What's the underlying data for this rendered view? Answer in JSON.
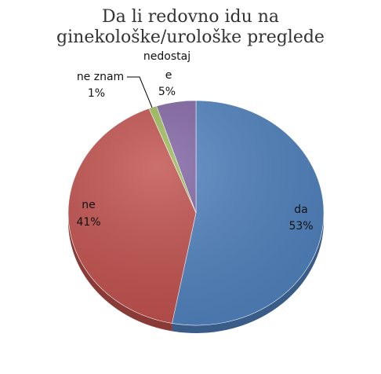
{
  "chart_data": {
    "type": "pie",
    "title_lines": [
      "Da li redovno idu na",
      "ginekološke/urološke preglede"
    ],
    "slices": [
      {
        "name": "da",
        "value": 53,
        "label_name": "da",
        "label_value": "53%",
        "color": "#4f81bd"
      },
      {
        "name": "ne",
        "value": 41,
        "label_name": "ne",
        "label_value": "41%",
        "color": "#c0504d"
      },
      {
        "name": "ne znam",
        "value": 1,
        "label_name": "ne znam",
        "label_value": "1%",
        "color": "#9bbb59"
      },
      {
        "name": "nedostaje",
        "value": 5,
        "label_name_line1": "nedostaj",
        "label_name_line2": "e",
        "label_value": "5%",
        "color": "#8064a2"
      }
    ],
    "legend": "none",
    "three_d": true
  }
}
